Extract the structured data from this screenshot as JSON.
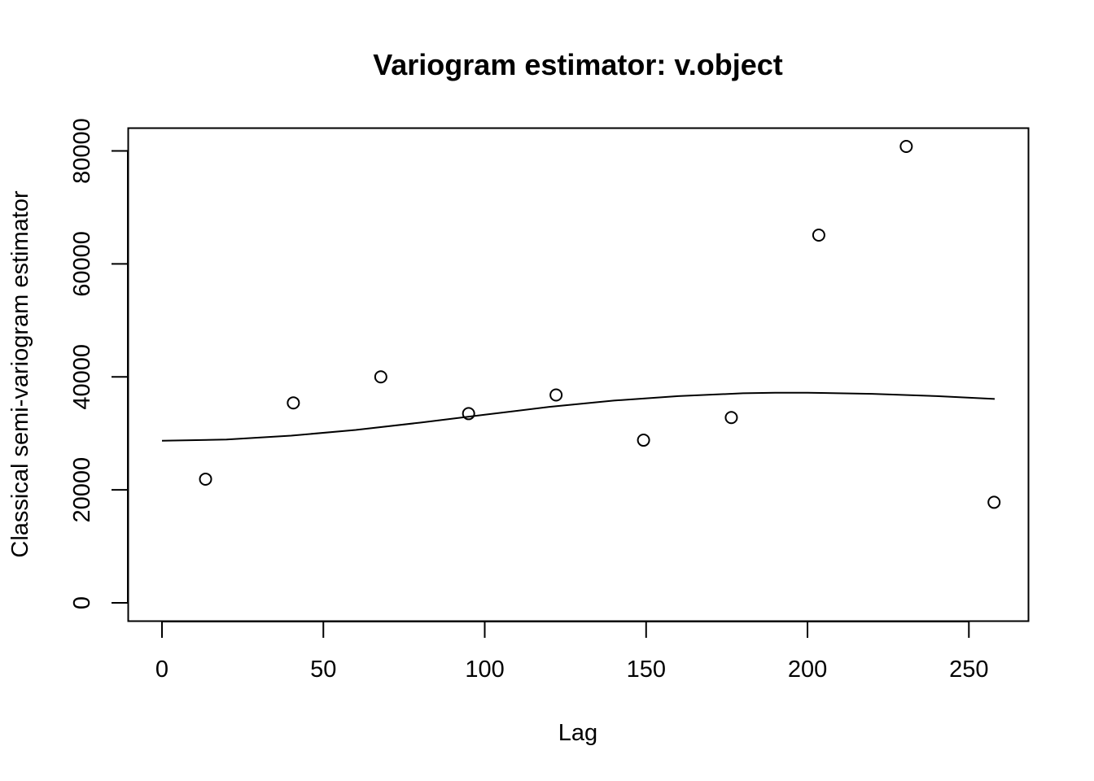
{
  "chart_data": {
    "type": "scatter",
    "title": "Variogram estimator: v.object",
    "xlabel": "Lag",
    "ylabel": "Classical semi-variogram estimator",
    "xlim": [
      0,
      258
    ],
    "ylim": [
      0,
      80800
    ],
    "x_ticks": [
      0,
      50,
      100,
      150,
      200,
      250
    ],
    "x_tick_labels": [
      "0",
      "50",
      "100",
      "150",
      "200",
      "250"
    ],
    "y_ticks": [
      0,
      20000,
      40000,
      60000,
      80000
    ],
    "y_tick_labels": [
      "0",
      "20000",
      "40000",
      "60000",
      "80000"
    ],
    "grid": false,
    "series": [
      {
        "kind": "points",
        "marker": "open-circle",
        "x": [
          13.5,
          40.7,
          67.8,
          95.0,
          122.1,
          149.2,
          176.4,
          203.5,
          230.6,
          257.8
        ],
        "y": [
          21900,
          35400,
          40000,
          33500,
          36800,
          28800,
          32800,
          65100,
          80800,
          17800
        ]
      },
      {
        "kind": "line",
        "x": [
          0,
          20,
          40,
          60,
          80,
          100,
          120,
          140,
          160,
          180,
          190,
          200,
          220,
          240,
          258
        ],
        "y": [
          28700,
          28900,
          29600,
          30600,
          31900,
          33300,
          34700,
          35800,
          36600,
          37100,
          37200,
          37200,
          37000,
          36600,
          36100
        ]
      }
    ]
  }
}
